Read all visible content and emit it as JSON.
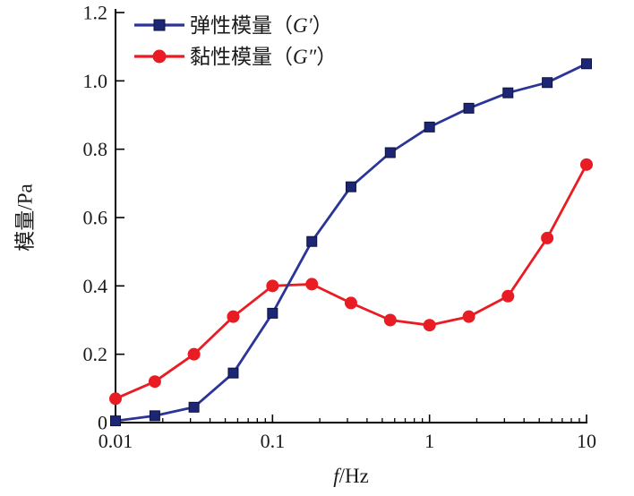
{
  "chart_data": {
    "type": "line",
    "title": "",
    "xlabel_italic": "f",
    "xlabel_rest": "/Hz",
    "ylabel": "模量/Pa",
    "xscale": "log",
    "xlim": [
      0.01,
      10
    ],
    "ylim": [
      0,
      1.2
    ],
    "grid": false,
    "legend_position": "top-left",
    "x": [
      0.01,
      0.0178,
      0.0316,
      0.0562,
      0.1,
      0.178,
      0.316,
      0.562,
      1,
      1.78,
      3.16,
      5.62,
      10
    ],
    "series": [
      {
        "label_prefix": "弹性模量（",
        "symbol": "G′",
        "label_suffix": "）",
        "marker": "square",
        "color": "#2b3597",
        "marker_color": "#1c2674",
        "marker_edge": "#0d123f",
        "values": [
          0.005,
          0.02,
          0.045,
          0.145,
          0.32,
          0.53,
          0.69,
          0.79,
          0.865,
          0.92,
          0.965,
          0.995,
          1.05
        ]
      },
      {
        "label_prefix": "黏性模量（",
        "symbol": "G″",
        "label_suffix": "）",
        "marker": "circle",
        "color": "#e81c22",
        "marker_color": "#e81c22",
        "marker_edge": "#c00f14",
        "values": [
          0.07,
          0.12,
          0.2,
          0.31,
          0.4,
          0.405,
          0.35,
          0.3,
          0.285,
          0.31,
          0.37,
          0.54,
          0.755
        ]
      }
    ],
    "xticks": {
      "values": [
        0.01,
        0.1,
        1,
        10
      ],
      "labels": [
        "0.01",
        "0.1",
        "1",
        "10"
      ]
    },
    "yticks": {
      "values": [
        0,
        0.2,
        0.4,
        0.6,
        0.8,
        1.0,
        1.2
      ],
      "labels": [
        "0",
        "0.2",
        "0.4",
        "0.6",
        "0.8",
        "1.0",
        "1.2"
      ]
    }
  }
}
